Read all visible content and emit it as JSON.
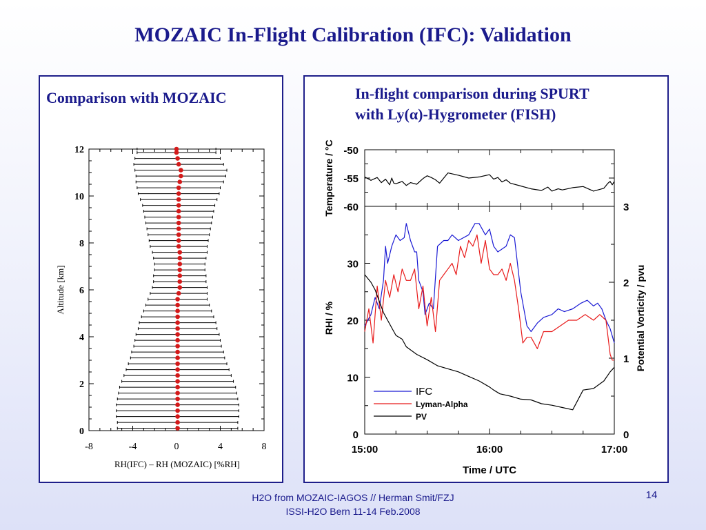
{
  "slide": {
    "title": "MOZAIC In-Flight Calibration (IFC): Validation",
    "footer_line1": "H2O from MOZAIC-IAGOS // Herman Smit/FZJ",
    "footer_line2": "ISSI-H2O Bern 11-14 Feb.2008",
    "page_number": "14"
  },
  "chart_data": [
    {
      "type": "scatter",
      "title": "Comparison with MOZAIC",
      "xlabel": "RH(IFC) – RH (MOZAIC) [%RH]",
      "ylabel": "Altitude  [km]",
      "xlim": [
        -8,
        8
      ],
      "ylim": [
        0,
        12
      ],
      "xticks": [
        -8,
        -4,
        0,
        4,
        8
      ],
      "yticks": [
        0,
        2,
        4,
        6,
        8,
        10,
        12
      ],
      "point_color": "#d41a1a",
      "errorbar_color": "#000000",
      "points": [
        {
          "alt": 0.1,
          "mean": 0.1,
          "sd": 5.5
        },
        {
          "alt": 0.35,
          "mean": 0.1,
          "sd": 5.5
        },
        {
          "alt": 0.6,
          "mean": 0.1,
          "sd": 5.6
        },
        {
          "alt": 0.85,
          "mean": 0.1,
          "sd": 5.6
        },
        {
          "alt": 1.1,
          "mean": 0.1,
          "sd": 5.6
        },
        {
          "alt": 1.35,
          "mean": 0.1,
          "sd": 5.5
        },
        {
          "alt": 1.6,
          "mean": 0.1,
          "sd": 5.4
        },
        {
          "alt": 1.85,
          "mean": 0.1,
          "sd": 5.3
        },
        {
          "alt": 2.1,
          "mean": 0.1,
          "sd": 5.1
        },
        {
          "alt": 2.35,
          "mean": 0.1,
          "sd": 4.9
        },
        {
          "alt": 2.6,
          "mean": 0.1,
          "sd": 4.7
        },
        {
          "alt": 2.85,
          "mean": 0.1,
          "sd": 4.5
        },
        {
          "alt": 3.1,
          "mean": 0.1,
          "sd": 4.3
        },
        {
          "alt": 3.35,
          "mean": 0.1,
          "sd": 4.2
        },
        {
          "alt": 3.6,
          "mean": 0.1,
          "sd": 4.0
        },
        {
          "alt": 3.85,
          "mean": 0.1,
          "sd": 3.9
        },
        {
          "alt": 4.1,
          "mean": 0.1,
          "sd": 3.8
        },
        {
          "alt": 4.35,
          "mean": 0.1,
          "sd": 3.6
        },
        {
          "alt": 4.6,
          "mean": 0.1,
          "sd": 3.5
        },
        {
          "alt": 4.85,
          "mean": 0.1,
          "sd": 3.3
        },
        {
          "alt": 5.1,
          "mean": 0.1,
          "sd": 3.1
        },
        {
          "alt": 5.35,
          "mean": 0.1,
          "sd": 2.9
        },
        {
          "alt": 5.6,
          "mean": 0.1,
          "sd": 2.7
        },
        {
          "alt": 5.85,
          "mean": 0.2,
          "sd": 2.6
        },
        {
          "alt": 6.1,
          "mean": 0.3,
          "sd": 2.5
        },
        {
          "alt": 6.35,
          "mean": 0.3,
          "sd": 2.4
        },
        {
          "alt": 6.6,
          "mean": 0.3,
          "sd": 2.4
        },
        {
          "alt": 6.85,
          "mean": 0.3,
          "sd": 2.3
        },
        {
          "alt": 7.1,
          "mean": 0.3,
          "sd": 2.3
        },
        {
          "alt": 7.35,
          "mean": 0.3,
          "sd": 2.4
        },
        {
          "alt": 7.6,
          "mean": 0.3,
          "sd": 2.5
        },
        {
          "alt": 7.85,
          "mean": 0.2,
          "sd": 2.6
        },
        {
          "alt": 8.1,
          "mean": 0.2,
          "sd": 2.7
        },
        {
          "alt": 8.35,
          "mean": 0.2,
          "sd": 2.8
        },
        {
          "alt": 8.6,
          "mean": 0.2,
          "sd": 2.9
        },
        {
          "alt": 8.85,
          "mean": 0.2,
          "sd": 3.0
        },
        {
          "alt": 9.1,
          "mean": 0.2,
          "sd": 3.1
        },
        {
          "alt": 9.35,
          "mean": 0.2,
          "sd": 3.2
        },
        {
          "alt": 9.6,
          "mean": 0.2,
          "sd": 3.3
        },
        {
          "alt": 9.85,
          "mean": 0.2,
          "sd": 3.5
        },
        {
          "alt": 10.1,
          "mean": 0.2,
          "sd": 3.7
        },
        {
          "alt": 10.35,
          "mean": 0.2,
          "sd": 3.8
        },
        {
          "alt": 10.6,
          "mean": 0.3,
          "sd": 4.0
        },
        {
          "alt": 10.85,
          "mean": 0.4,
          "sd": 4.1
        },
        {
          "alt": 11.1,
          "mean": 0.4,
          "sd": 4.2
        },
        {
          "alt": 11.35,
          "mean": 0.2,
          "sd": 4.1
        },
        {
          "alt": 11.6,
          "mean": 0.1,
          "sd": 3.9
        },
        {
          "alt": 11.85,
          "mean": 0.0,
          "sd": 3.6
        },
        {
          "alt": 12.0,
          "mean": 0.0,
          "sd": 3.6
        }
      ]
    },
    {
      "type": "line",
      "title": "In-flight comparison during SPURT",
      "title_line2_prefix": "with Ly(",
      "title_line2_symbol": "α",
      "title_line2_suffix": ")-Hygrometer (FISH)",
      "xlabel": "Time / UTC",
      "xticks": [
        "15:00",
        "16:00",
        "17:00"
      ],
      "xlim": [
        0,
        120
      ],
      "top_panel": {
        "ylabel": "Temperature / °C",
        "ylim": [
          -60,
          -50
        ],
        "yticks": [
          -50,
          -55,
          -60
        ],
        "series": [
          {
            "name": "Temperature",
            "color": "#000000",
            "x": [
              0,
              3,
              6,
              8,
              10,
              12,
              13,
              14,
              15,
              18,
              20,
              22,
              25,
              28,
              30,
              32,
              34,
              36,
              40,
              45,
              50,
              55,
              60,
              62,
              64,
              66,
              68,
              70,
              75,
              80,
              85,
              88,
              90,
              93,
              95,
              100,
              105,
              110,
              115,
              117,
              118,
              119,
              120
            ],
            "y": [
              -54.8,
              -55.4,
              -54.9,
              -55.8,
              -55.2,
              -56.2,
              -55.0,
              -55.9,
              -56.0,
              -55.6,
              -56.3,
              -55.8,
              -56.1,
              -55.1,
              -54.6,
              -54.9,
              -55.3,
              -55.9,
              -54.1,
              -54.5,
              -55.0,
              -54.8,
              -54.4,
              -55.2,
              -54.9,
              -55.7,
              -55.3,
              -55.9,
              -56.4,
              -56.9,
              -57.2,
              -56.6,
              -57.3,
              -56.9,
              -57.1,
              -56.7,
              -56.5,
              -57.3,
              -56.8,
              -55.9,
              -55.6,
              -56.2,
              -55.6
            ]
          }
        ]
      },
      "bottom_panel": {
        "ylabel": "RHI / %",
        "ylim": [
          0,
          40
        ],
        "yticks": [
          0,
          10,
          20,
          30
        ],
        "y2label": "Potential Vorticity / pvu",
        "y2lim": [
          0,
          3
        ],
        "y2ticks": [
          0,
          1,
          2,
          3
        ],
        "legend_position": "bottom-left",
        "series": [
          {
            "name": "IFC",
            "color": "#1a1ad4",
            "axis": "left",
            "x": [
              0,
              3,
              5,
              7,
              9,
              10,
              11,
              13,
              15,
              17,
              19,
              20,
              22,
              24,
              25,
              26,
              28,
              29,
              31,
              33,
              35,
              38,
              40,
              42,
              45,
              50,
              53,
              55,
              58,
              60,
              62,
              64,
              66,
              68,
              70,
              72,
              75,
              78,
              80,
              83,
              86,
              90,
              93,
              96,
              100,
              104,
              107,
              110,
              112,
              114,
              116,
              118,
              120
            ],
            "y": [
              19,
              21,
              24,
              22,
              27,
              33,
              30,
              33,
              35,
              34,
              34.5,
              37,
              34,
              32,
              32,
              27,
              25,
              21,
              23,
              22,
              33,
              34,
              34,
              35,
              34,
              35,
              37,
              37,
              35,
              36,
              33,
              32,
              32.5,
              33,
              35,
              34.5,
              25,
              19,
              18,
              19.5,
              20.5,
              21,
              22,
              21.5,
              22,
              23,
              23.5,
              22.5,
              23,
              22,
              20,
              18.5,
              16
            ]
          },
          {
            "name": "Lyman-Alpha",
            "color": "#e81a1a",
            "axis": "left",
            "x": [
              0,
              2,
              4,
              6,
              8,
              10,
              12,
              14,
              16,
              18,
              20,
              22,
              24,
              26,
              28,
              30,
              32,
              34,
              36,
              38,
              40,
              42,
              44,
              46,
              48,
              50,
              52,
              54,
              56,
              58,
              60,
              62,
              64,
              66,
              68,
              70,
              72,
              74,
              76,
              78,
              80,
              83,
              86,
              90,
              94,
              98,
              102,
              106,
              110,
              113,
              116,
              118,
              119,
              120
            ],
            "y": [
              18,
              22,
              16,
              26,
              20,
              27,
              24,
              28,
              25,
              29,
              27,
              27,
              29,
              22,
              26,
              19,
              24,
              18,
              27,
              28,
              29,
              30,
              28,
              33,
              31,
              34,
              33,
              35,
              30,
              34,
              29,
              28,
              28,
              29,
              27,
              30,
              27,
              22,
              16,
              17,
              17,
              15,
              18,
              18,
              19,
              20,
              20,
              21,
              20,
              21,
              20,
              14,
              13,
              13
            ]
          },
          {
            "name": "PV",
            "color": "#000000",
            "axis": "right",
            "x": [
              0,
              3,
              5,
              7,
              9,
              11,
              13,
              15,
              18,
              20,
              25,
              30,
              35,
              40,
              45,
              50,
              55,
              60,
              62,
              65,
              70,
              75,
              80,
              85,
              90,
              95,
              100,
              105,
              110,
              115,
              118,
              120
            ],
            "y": [
              2.1,
              2.0,
              1.9,
              1.75,
              1.6,
              1.5,
              1.4,
              1.3,
              1.25,
              1.15,
              1.05,
              0.98,
              0.9,
              0.86,
              0.82,
              0.76,
              0.7,
              0.62,
              0.58,
              0.53,
              0.5,
              0.46,
              0.45,
              0.4,
              0.38,
              0.35,
              0.32,
              0.58,
              0.6,
              0.7,
              0.82,
              0.88
            ]
          }
        ]
      }
    }
  ]
}
